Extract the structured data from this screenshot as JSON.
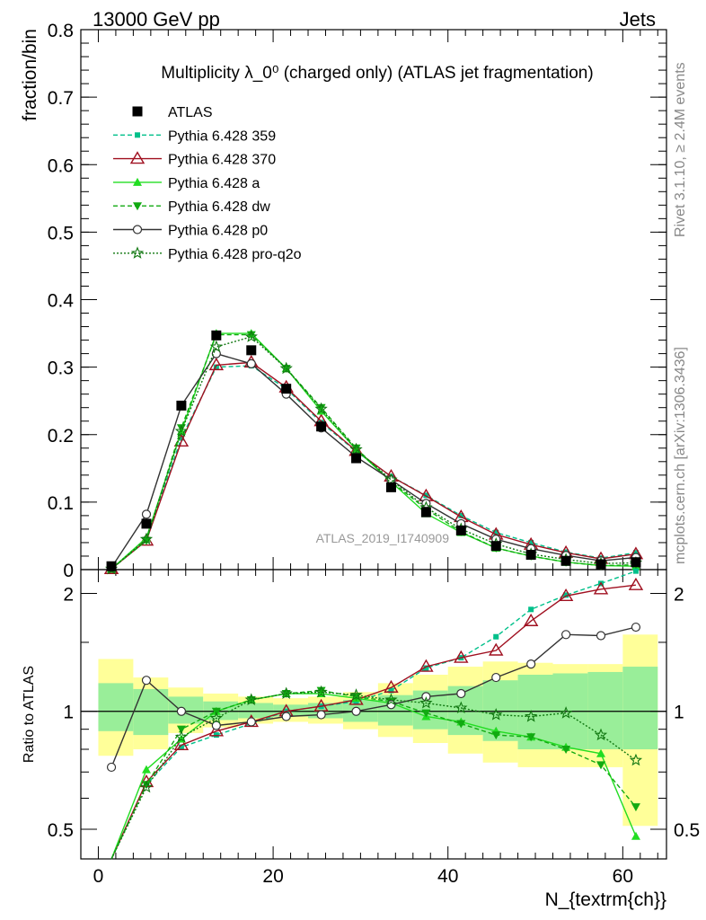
{
  "header": {
    "left": "13000 GeV pp",
    "right": "Jets"
  },
  "side": {
    "rivet": "Rivet 3.1.10, ≥ 2.4M events",
    "mcplots": "mcplots.cern.ch [arXiv:1306.3436]"
  },
  "chart_data": {
    "type": "line",
    "title": "Multiplicity λ_0⁰ (charged only) (ATLAS jet fragmentation)",
    "analysis_label": "ATLAS_2019_I1740909",
    "xlabel": "N_{textrm{ch}}",
    "ylabel": "fraction/bin",
    "ratio_ylabel": "Ratio to ATLAS",
    "xlim": [
      -2,
      65
    ],
    "ylim": [
      0,
      0.8
    ],
    "ratio_ylim": [
      0.42,
      2.3
    ],
    "ratio_log_scale": true,
    "x_ticks": [
      "0",
      "20",
      "40",
      "60"
    ],
    "y_ticks": [
      "0",
      "0.1",
      "0.2",
      "0.3",
      "0.4",
      "0.5",
      "0.6",
      "0.7",
      "0.8"
    ],
    "ratio_ticks": [
      "0.5",
      "1",
      "2"
    ],
    "legend_position": "top-left",
    "x": [
      1.5,
      5.5,
      9.5,
      13.5,
      17.5,
      21.5,
      25.5,
      29.5,
      33.5,
      37.5,
      41.5,
      45.5,
      49.5,
      53.5,
      57.5,
      61.5
    ],
    "bin_edges": [
      0,
      4,
      8,
      12,
      16,
      20,
      24,
      28,
      32,
      36,
      40,
      44,
      48,
      52,
      56,
      60,
      64
    ],
    "band_inner": [
      [
        0.89,
        1.18
      ],
      [
        0.87,
        1.14
      ],
      [
        0.93,
        1.09
      ],
      [
        0.95,
        1.06
      ],
      [
        0.96,
        1.05
      ],
      [
        0.97,
        1.04
      ],
      [
        0.96,
        1.05
      ],
      [
        0.94,
        1.07
      ],
      [
        0.92,
        1.1
      ],
      [
        0.9,
        1.13
      ],
      [
        0.87,
        1.16
      ],
      [
        0.84,
        1.2
      ],
      [
        0.8,
        1.24
      ],
      [
        0.8,
        1.25
      ],
      [
        0.8,
        1.26
      ],
      [
        0.8,
        1.3
      ]
    ],
    "band_outer": [
      [
        0.77,
        1.36
      ],
      [
        0.8,
        1.22
      ],
      [
        0.88,
        1.15
      ],
      [
        0.91,
        1.11
      ],
      [
        0.93,
        1.09
      ],
      [
        0.94,
        1.08
      ],
      [
        0.93,
        1.09
      ],
      [
        0.9,
        1.12
      ],
      [
        0.86,
        1.18
      ],
      [
        0.83,
        1.24
      ],
      [
        0.78,
        1.3
      ],
      [
        0.74,
        1.34
      ],
      [
        0.72,
        1.33
      ],
      [
        0.72,
        1.32
      ],
      [
        0.72,
        1.32
      ],
      [
        0.51,
        1.57
      ]
    ],
    "series": [
      {
        "name": "ATLAS",
        "color": "#000000",
        "dash": "",
        "marker": "square-filled",
        "values": [
          0.005,
          0.068,
          0.243,
          0.347,
          0.325,
          0.268,
          0.212,
          0.165,
          0.122,
          0.085,
          0.058,
          0.035,
          0.022,
          0.013,
          0.008,
          0.011
        ],
        "ratio": [
          1,
          1,
          1,
          1,
          1,
          1,
          1,
          1,
          1,
          1,
          1,
          1,
          1,
          1,
          1,
          1
        ]
      },
      {
        "name": "Pythia 6.428 359",
        "color": "#00c08a",
        "dash": "5,3",
        "marker": "square-small",
        "values": [
          0.001,
          0.045,
          0.195,
          0.3,
          0.302,
          0.268,
          0.218,
          0.175,
          0.138,
          0.11,
          0.08,
          0.055,
          0.04,
          0.026,
          0.017,
          0.025
        ],
        "ratio": [
          0.3,
          0.65,
          0.81,
          0.87,
          0.93,
          1.0,
          1.03,
          1.06,
          1.13,
          1.29,
          1.37,
          1.55,
          1.82,
          1.98,
          2.12,
          2.28
        ]
      },
      {
        "name": "Pythia 6.428 370",
        "color": "#a01020",
        "dash": "",
        "marker": "triangle-open",
        "values": [
          0.001,
          0.043,
          0.19,
          0.303,
          0.307,
          0.27,
          0.22,
          0.176,
          0.138,
          0.109,
          0.078,
          0.052,
          0.037,
          0.025,
          0.016,
          0.023
        ],
        "ratio": [
          0.3,
          0.66,
          0.82,
          0.89,
          0.94,
          1.0,
          1.03,
          1.07,
          1.15,
          1.3,
          1.37,
          1.43,
          1.7,
          1.97,
          2.05,
          2.1
        ]
      },
      {
        "name": "Pythia 6.428 a",
        "color": "#22dd22",
        "dash": "",
        "marker": "triangle-filled",
        "values": [
          0.001,
          0.047,
          0.205,
          0.35,
          0.35,
          0.298,
          0.235,
          0.178,
          0.13,
          0.083,
          0.055,
          0.032,
          0.02,
          0.011,
          0.006,
          0.005
        ],
        "ratio": [
          0.3,
          0.71,
          0.85,
          1.0,
          1.07,
          1.11,
          1.11,
          1.08,
          1.05,
          0.97,
          0.94,
          0.89,
          0.86,
          0.81,
          0.78,
          0.48
        ]
      },
      {
        "name": "Pythia 6.428 dw",
        "color": "#11aa11",
        "dash": "5,3",
        "marker": "triangle-down-filled",
        "values": [
          0.001,
          0.043,
          0.21,
          0.348,
          0.348,
          0.298,
          0.24,
          0.18,
          0.13,
          0.09,
          0.056,
          0.032,
          0.02,
          0.011,
          0.006,
          0.007
        ],
        "ratio": [
          0.3,
          0.65,
          0.9,
          1.0,
          1.07,
          1.11,
          1.13,
          1.09,
          1.06,
          0.99,
          0.93,
          0.87,
          0.86,
          0.8,
          0.73,
          0.57
        ]
      },
      {
        "name": "Pythia 6.428 p0",
        "color": "#333333",
        "dash": "",
        "marker": "circle-open",
        "values": [
          0.003,
          0.082,
          0.243,
          0.32,
          0.305,
          0.26,
          0.21,
          0.167,
          0.133,
          0.098,
          0.068,
          0.045,
          0.031,
          0.021,
          0.013,
          0.018
        ],
        "ratio": [
          0.72,
          1.2,
          1.0,
          0.92,
          0.94,
          0.97,
          0.98,
          1.0,
          1.04,
          1.09,
          1.11,
          1.22,
          1.32,
          1.57,
          1.56,
          1.64
        ]
      },
      {
        "name": "Pythia 6.428 pro-q2o",
        "color": "#117711",
        "dash": "2,2",
        "marker": "star-open",
        "values": [
          0.001,
          0.045,
          0.205,
          0.33,
          0.345,
          0.298,
          0.238,
          0.178,
          0.133,
          0.092,
          0.06,
          0.038,
          0.023,
          0.015,
          0.009,
          0.01
        ],
        "ratio": [
          0.3,
          0.64,
          0.86,
          0.96,
          1.07,
          1.11,
          1.12,
          1.1,
          1.07,
          1.05,
          1.02,
          0.98,
          0.97,
          0.99,
          0.87,
          0.75
        ]
      }
    ]
  }
}
